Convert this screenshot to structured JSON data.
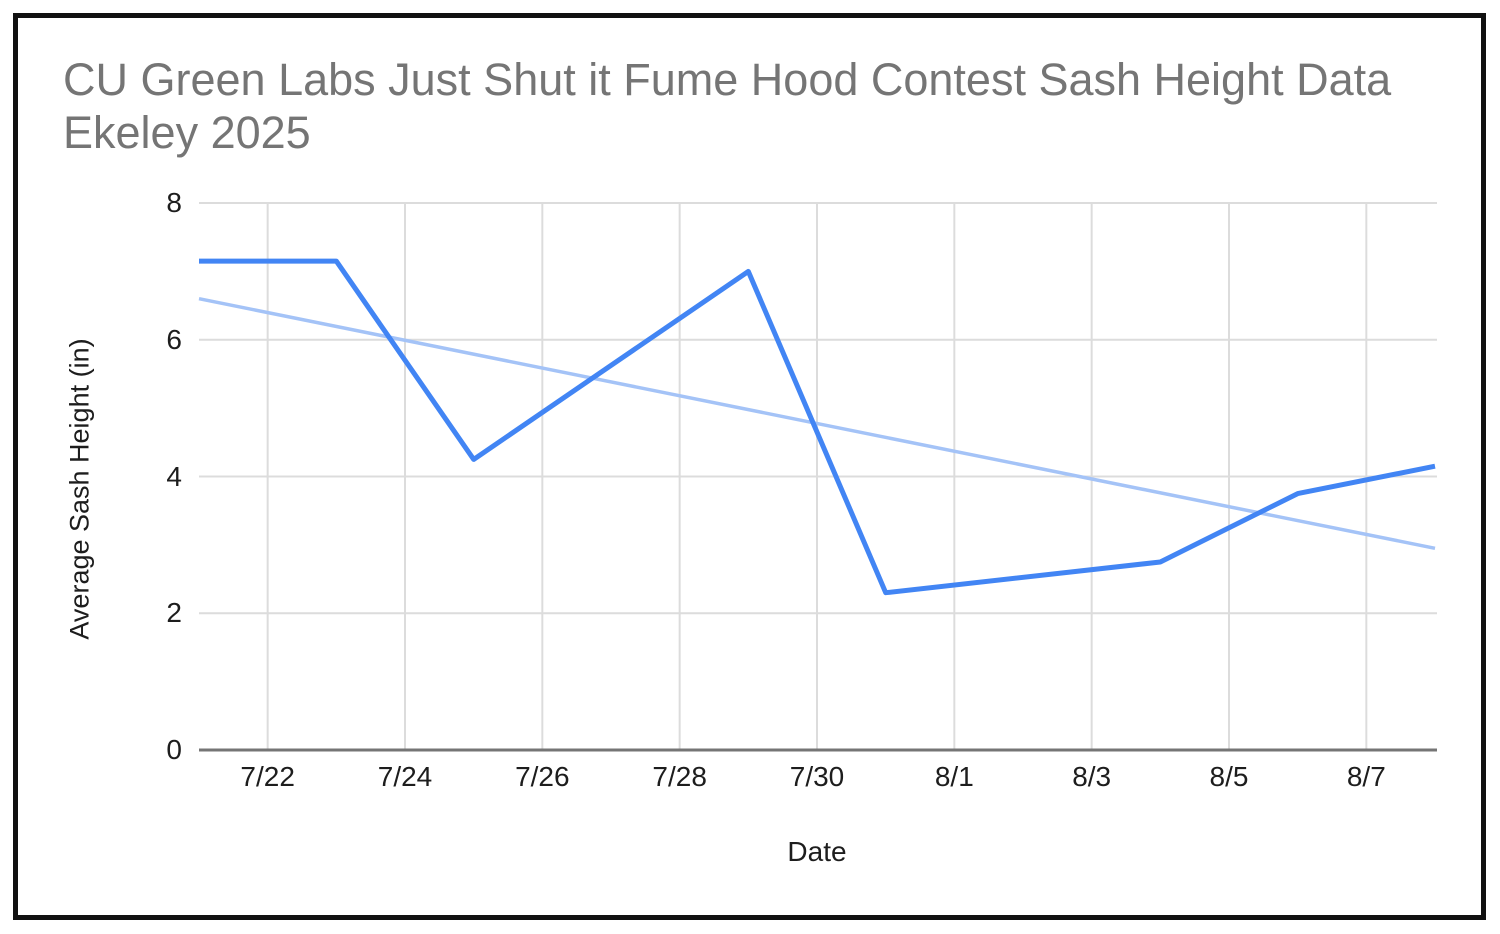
{
  "chart_data": {
    "type": "line",
    "title": "CU Green Labs Just Shut it Fume Hood Contest Sash Height Data Ekeley 2025",
    "xlabel": "Date",
    "ylabel": "Average Sash Height (in)",
    "ylim": [
      0,
      8
    ],
    "y_ticks": [
      0,
      2,
      4,
      6,
      8
    ],
    "x_ticks": [
      {
        "label": "7/22",
        "day": 1
      },
      {
        "label": "7/24",
        "day": 3
      },
      {
        "label": "7/26",
        "day": 5
      },
      {
        "label": "7/28",
        "day": 7
      },
      {
        "label": "7/30",
        "day": 9
      },
      {
        "label": "8/1",
        "day": 11
      },
      {
        "label": "8/3",
        "day": 13
      },
      {
        "label": "8/5",
        "day": 15
      },
      {
        "label": "8/7",
        "day": 17
      }
    ],
    "x_range": {
      "start_date": "7/21",
      "end_date": "8/8",
      "total_days": 18
    },
    "grid": true,
    "legend_position": "none",
    "series": [
      {
        "name": "average_sash_height",
        "color": "#4285f4",
        "trendline": false,
        "points": [
          {
            "date": "7/21",
            "day": 0,
            "value": 7.15
          },
          {
            "date": "7/23",
            "day": 2,
            "value": 7.15
          },
          {
            "date": "7/25",
            "day": 4,
            "value": 4.25
          },
          {
            "date": "7/29",
            "day": 8,
            "value": 7.0
          },
          {
            "date": "7/31",
            "day": 10,
            "value": 2.3
          },
          {
            "date": "8/4",
            "day": 14,
            "value": 2.75
          },
          {
            "date": "8/6",
            "day": 16,
            "value": 3.75
          },
          {
            "date": "8/8",
            "day": 18,
            "value": 4.15
          }
        ]
      },
      {
        "name": "linear_trendline",
        "color": "#a4c3f7",
        "trendline": true,
        "points": [
          {
            "date": "7/21",
            "day": 0,
            "value": 6.6
          },
          {
            "date": "8/8",
            "day": 18,
            "value": 2.95
          }
        ]
      }
    ],
    "colors": {
      "gridline": "#dcdcdc",
      "axis_line": "#757575",
      "title_text": "#757575",
      "tick_text": "#1d1d1d",
      "background": "#ffffff",
      "border": "#111111"
    }
  }
}
